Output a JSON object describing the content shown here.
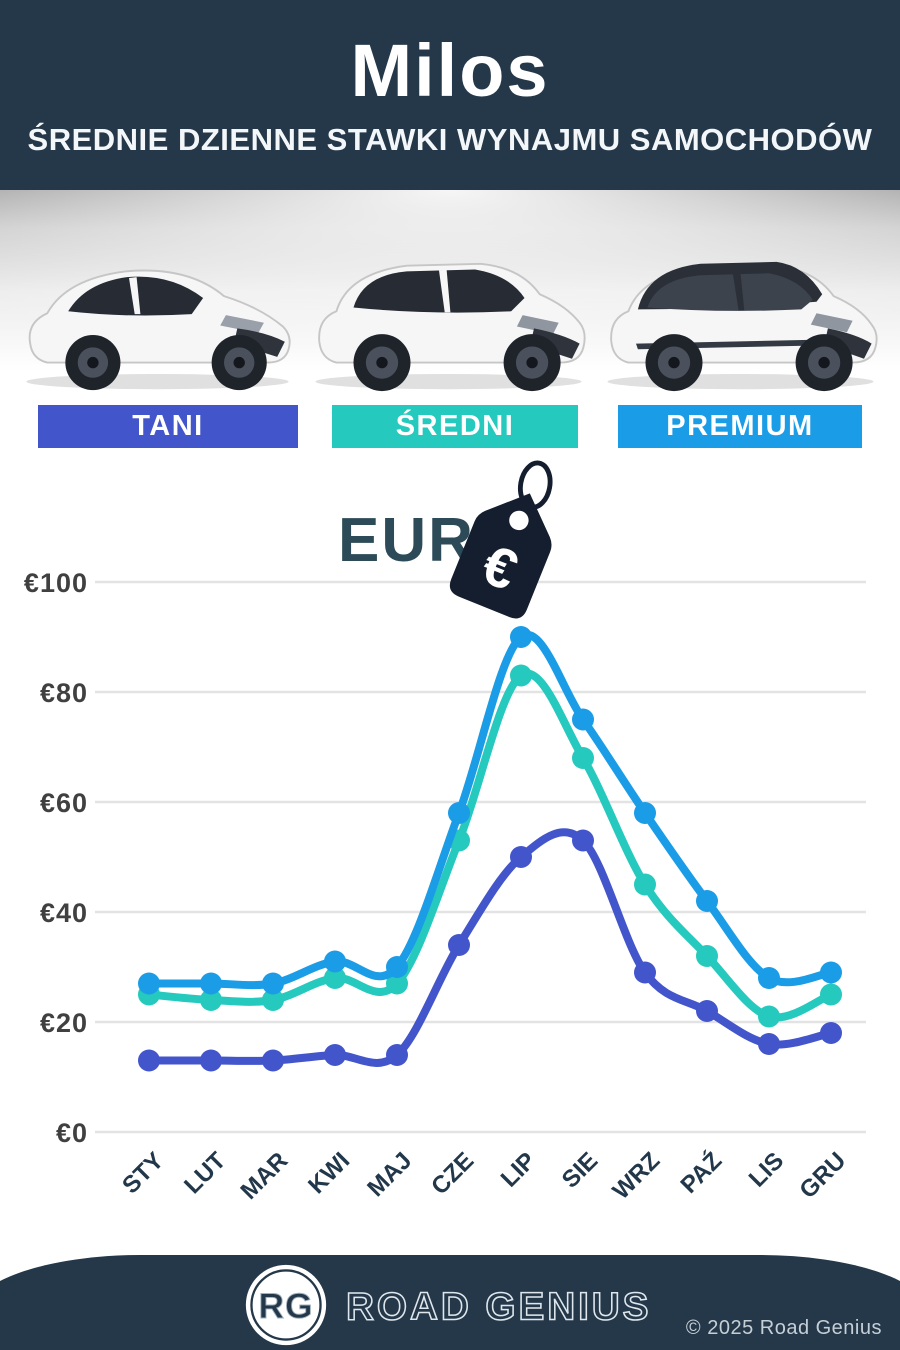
{
  "header": {
    "title": "Milos",
    "subtitle": "ŚREDNIE DZIENNE STAWKI WYNAJMU SAMOCHODÓW"
  },
  "categories_section": {
    "items": [
      {
        "label": "TANI",
        "color": "#4355cb",
        "car": "hatchback"
      },
      {
        "label": "ŚREDNI",
        "color": "#26c9bd",
        "car": "suv"
      },
      {
        "label": "PREMIUM",
        "color": "#1a9ce6",
        "car": "premium-suv"
      }
    ]
  },
  "currency": {
    "label": "EUR",
    "symbol": "€"
  },
  "chart_data": {
    "type": "line",
    "title": "",
    "xlabel": "",
    "ylabel": "",
    "categories": [
      "STY",
      "LUT",
      "MAR",
      "KWI",
      "MAJ",
      "CZE",
      "LIP",
      "SIE",
      "WRZ",
      "PAŹ",
      "LIS",
      "GRU"
    ],
    "series": [
      {
        "name": "PREMIUM",
        "color": "#1a9ce6",
        "values": [
          27,
          27,
          27,
          31,
          30,
          58,
          90,
          75,
          58,
          42,
          28,
          29
        ]
      },
      {
        "name": "ŚREDNI",
        "color": "#26c9bd",
        "values": [
          25,
          24,
          24,
          28,
          27,
          53,
          83,
          68,
          45,
          32,
          21,
          25
        ]
      },
      {
        "name": "TANI",
        "color": "#4355cb",
        "values": [
          13,
          13,
          13,
          14,
          14,
          34,
          50,
          53,
          29,
          22,
          16,
          18
        ]
      }
    ],
    "yticks": [
      0,
      20,
      40,
      60,
      80,
      100
    ],
    "ytick_prefix": "€",
    "ylim": [
      0,
      105
    ],
    "grid": true,
    "legend_position": "none",
    "gridline_color": "#e3e3e3"
  },
  "footer": {
    "badge": "RG",
    "brand": "ROAD GENIUS",
    "copyright": "© 2025 Road Genius"
  }
}
